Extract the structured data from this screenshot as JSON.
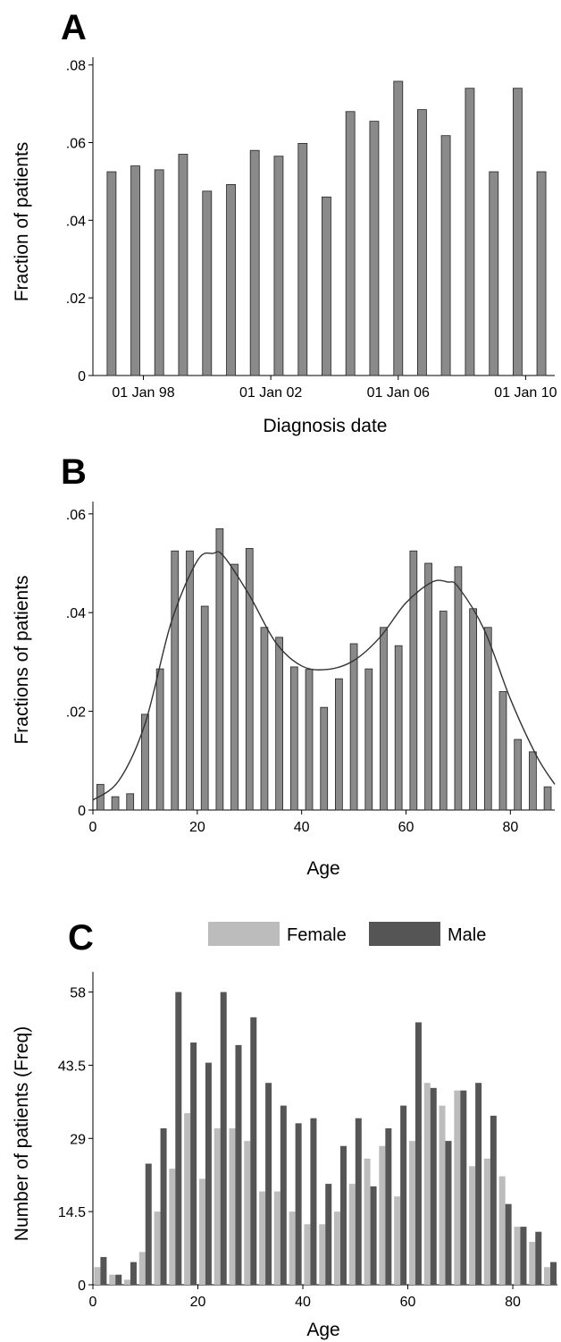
{
  "chart_data": [
    {
      "panel": "A",
      "type": "bar",
      "xlabel": "Diagnosis date",
      "ylabel": "Fraction of patients",
      "ylim": [
        0,
        0.082
      ],
      "xlim": [
        "1996-06-01",
        "2010-12-01"
      ],
      "yticks": [
        {
          "value": 0,
          "label": "0"
        },
        {
          "value": 0.02,
          "label": ".02"
        },
        {
          "value": 0.04,
          "label": ".04"
        },
        {
          "value": 0.06,
          "label": ".06"
        },
        {
          "value": 0.08,
          "label": ".08"
        }
      ],
      "xticks": [
        {
          "value": "1998-01-01",
          "label": "01 Jan 98"
        },
        {
          "value": "2002-01-01",
          "label": "01 Jan 02"
        },
        {
          "value": "2006-01-01",
          "label": "01 Jan 06"
        },
        {
          "value": "2010-01-01",
          "label": "01 Jan 10"
        }
      ],
      "bar_color": "#8a8a8a",
      "x": [
        "1997-01-01",
        "1997-10-01",
        "1998-07-01",
        "1999-04-01",
        "2000-01-01",
        "2000-10-01",
        "2001-07-01",
        "2002-04-01",
        "2003-01-01",
        "2003-10-01",
        "2004-07-01",
        "2005-04-01",
        "2006-01-01",
        "2006-10-01",
        "2007-07-01",
        "2008-04-01",
        "2009-01-01",
        "2009-10-01",
        "2010-07-01"
      ],
      "values": [
        0.0525,
        0.054,
        0.053,
        0.057,
        0.0475,
        0.0492,
        0.058,
        0.0565,
        0.0598,
        0.046,
        0.068,
        0.0655,
        0.0758,
        0.0685,
        0.0618,
        0.074,
        0.0525,
        0.074,
        0.0525
      ]
    },
    {
      "panel": "B",
      "type": "bar",
      "xlabel": "Age",
      "ylabel": "Fractions of patients",
      "ylim": [
        0,
        0.0625
      ],
      "xlim": [
        0,
        88.5
      ],
      "yticks": [
        {
          "value": 0,
          "label": "0"
        },
        {
          "value": 0.02,
          "label": ".02"
        },
        {
          "value": 0.04,
          "label": ".04"
        },
        {
          "value": 0.06,
          "label": ".06"
        }
      ],
      "xticks": [
        {
          "value": 0,
          "label": "0"
        },
        {
          "value": 20,
          "label": "20"
        },
        {
          "value": 40,
          "label": "40"
        },
        {
          "value": 60,
          "label": "60"
        },
        {
          "value": 80,
          "label": "80"
        }
      ],
      "bar_color": "#8a8a8a",
      "bin_width": 2.857,
      "x": [
        1.43,
        4.29,
        7.14,
        10.0,
        12.86,
        15.71,
        18.57,
        21.43,
        24.29,
        27.14,
        30.0,
        32.86,
        35.71,
        38.57,
        41.43,
        44.29,
        47.14,
        50.0,
        52.86,
        55.71,
        58.57,
        61.43,
        64.29,
        67.14,
        70.0,
        72.86,
        75.71,
        78.57,
        81.43,
        84.29,
        87.14
      ],
      "values": [
        0.0052,
        0.0027,
        0.0033,
        0.0194,
        0.0286,
        0.0525,
        0.0525,
        0.0413,
        0.057,
        0.0498,
        0.053,
        0.037,
        0.035,
        0.029,
        0.0285,
        0.0208,
        0.0266,
        0.0337,
        0.0286,
        0.037,
        0.0333,
        0.0525,
        0.05,
        0.0403,
        0.0493,
        0.0408,
        0.037,
        0.024,
        0.0143,
        0.0118,
        0.0047
      ],
      "density_curve": {
        "x": [
          0,
          5,
          10,
          15,
          20,
          23,
          25,
          30,
          35,
          40,
          45,
          50,
          55,
          60,
          65,
          68,
          70,
          75,
          80,
          85,
          88.5
        ],
        "y": [
          0.002,
          0.006,
          0.0175,
          0.038,
          0.0505,
          0.052,
          0.0515,
          0.0435,
          0.034,
          0.0292,
          0.0285,
          0.0303,
          0.035,
          0.042,
          0.0462,
          0.0462,
          0.0452,
          0.0365,
          0.0225,
          0.011,
          0.0052
        ]
      }
    },
    {
      "panel": "C",
      "type": "bar",
      "xlabel": "Age",
      "ylabel": "Number of patients (Freq)",
      "ylim": [
        0,
        62
      ],
      "xlim": [
        0,
        88.5
      ],
      "legend": {
        "placement": "top-center"
      },
      "yticks": [
        {
          "value": 0,
          "label": "0"
        },
        {
          "value": 14.5,
          "label": "14.5"
        },
        {
          "value": 29,
          "label": "29"
        },
        {
          "value": 43.5,
          "label": "43.5"
        },
        {
          "value": 58,
          "label": "58"
        }
      ],
      "xticks": [
        {
          "value": 0,
          "label": "0"
        },
        {
          "value": 20,
          "label": "20"
        },
        {
          "value": 40,
          "label": "40"
        },
        {
          "value": 60,
          "label": "60"
        },
        {
          "value": 80,
          "label": "80"
        }
      ],
      "x": [
        1.43,
        4.29,
        7.14,
        10.0,
        12.86,
        15.71,
        18.57,
        21.43,
        24.29,
        27.14,
        30.0,
        32.86,
        35.71,
        38.57,
        41.43,
        44.29,
        47.14,
        50.0,
        52.86,
        55.71,
        58.57,
        61.43,
        64.29,
        67.14,
        70.0,
        72.86,
        75.71,
        78.57,
        81.43,
        84.29,
        87.14
      ],
      "series": [
        {
          "name": "Female",
          "color": "#bcbcbc",
          "values": [
            3.5,
            2,
            1,
            6.5,
            14.5,
            23,
            34,
            21,
            31,
            31,
            28.5,
            18.5,
            18.5,
            14.5,
            12,
            12,
            14.5,
            20,
            25,
            27.5,
            17.5,
            28.5,
            40,
            35.5,
            38.5,
            23.5,
            25,
            21.5,
            11.5,
            8.5,
            3.5
          ]
        },
        {
          "name": "Male",
          "color": "#555555",
          "values": [
            5.5,
            2,
            4.5,
            24,
            31,
            58,
            48,
            44,
            58,
            47.5,
            53,
            40,
            35.5,
            32,
            33,
            20,
            27.5,
            33,
            19.5,
            31,
            35.5,
            52,
            39,
            28.5,
            38.5,
            40,
            33.5,
            16,
            11.5,
            10.5,
            4.5
          ]
        }
      ]
    }
  ],
  "panel_labels": [
    "A",
    "B",
    "C"
  ]
}
